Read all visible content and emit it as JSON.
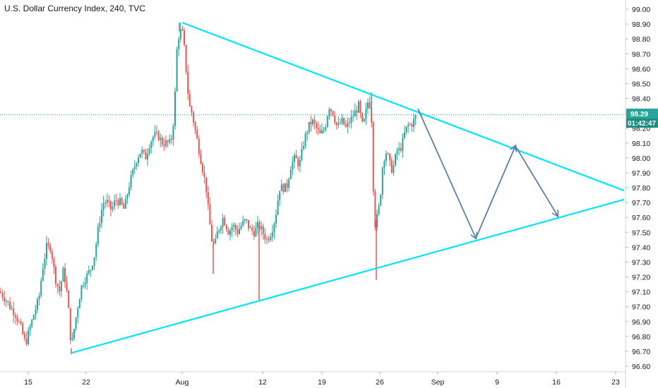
{
  "chart_data": {
    "type": "candlestick",
    "title": "U.S. Dollar Currency Index, 240, TVC",
    "y_ticks": [
      "99.00",
      "98.90",
      "98.80",
      "98.70",
      "98.60",
      "98.50",
      "98.40",
      "98.30",
      "98.20",
      "98.10",
      "98.00",
      "97.90",
      "97.80",
      "97.70",
      "97.60",
      "97.50",
      "97.40",
      "97.30",
      "97.20",
      "97.10",
      "97.00",
      "96.90",
      "96.80",
      "96.70",
      "96.60"
    ],
    "ylim": [
      96.55,
      99.04
    ],
    "x_ticks": [
      "15",
      "22",
      "Aug",
      "12",
      "19",
      "26",
      "Sep",
      "9",
      "16",
      "23"
    ],
    "last_price": "98.29",
    "countdown": "01:42:47",
    "colors": {
      "up": "#26a69a",
      "down": "#ef5350",
      "trendline": "#00e5ff",
      "projection": "#5b7fa6",
      "price_line": "#26a69a"
    },
    "price_path": [
      [
        0,
        97.1
      ],
      [
        8,
        97.05
      ],
      [
        14,
        97.0
      ],
      [
        22,
        96.95
      ],
      [
        30,
        96.85
      ],
      [
        36,
        96.75
      ],
      [
        42,
        96.85
      ],
      [
        48,
        96.95
      ],
      [
        55,
        97.05
      ],
      [
        60,
        97.25
      ],
      [
        66,
        97.4
      ],
      [
        72,
        97.4
      ],
      [
        78,
        97.2
      ],
      [
        84,
        97.1
      ],
      [
        90,
        97.25
      ],
      [
        96,
        97.05
      ],
      [
        101,
        96.72
      ],
      [
        105,
        96.85
      ],
      [
        110,
        97.0
      ],
      [
        116,
        97.15
      ],
      [
        122,
        97.2
      ],
      [
        128,
        97.25
      ],
      [
        134,
        97.35
      ],
      [
        140,
        97.55
      ],
      [
        146,
        97.7
      ],
      [
        152,
        97.7
      ],
      [
        158,
        97.65
      ],
      [
        164,
        97.72
      ],
      [
        170,
        97.7
      ],
      [
        176,
        97.65
      ],
      [
        182,
        97.8
      ],
      [
        188,
        97.9
      ],
      [
        194,
        98.0
      ],
      [
        200,
        98.05
      ],
      [
        206,
        98.0
      ],
      [
        212,
        98.1
      ],
      [
        218,
        98.15
      ],
      [
        224,
        98.15
      ],
      [
        230,
        98.1
      ],
      [
        236,
        98.1
      ],
      [
        242,
        98.1
      ],
      [
        247,
        98.3
      ],
      [
        250,
        98.7
      ],
      [
        254,
        98.85
      ],
      [
        258,
        98.85
      ],
      [
        262,
        98.7
      ],
      [
        265,
        98.5
      ],
      [
        268,
        98.35
      ],
      [
        272,
        98.3
      ],
      [
        276,
        98.2
      ],
      [
        280,
        98.1
      ],
      [
        284,
        98.0
      ],
      [
        288,
        97.9
      ],
      [
        292,
        97.8
      ],
      [
        296,
        97.6
      ],
      [
        300,
        97.45
      ],
      [
        304,
        97.4
      ],
      [
        308,
        97.5
      ],
      [
        312,
        97.55
      ],
      [
        316,
        97.6
      ],
      [
        320,
        97.55
      ],
      [
        324,
        97.5
      ],
      [
        330,
        97.55
      ],
      [
        336,
        97.5
      ],
      [
        342,
        97.55
      ],
      [
        348,
        97.58
      ],
      [
        354,
        97.52
      ],
      [
        360,
        97.5
      ],
      [
        366,
        97.55
      ],
      [
        372,
        97.5
      ],
      [
        378,
        97.45
      ],
      [
        384,
        97.5
      ],
      [
        390,
        97.6
      ],
      [
        396,
        97.8
      ],
      [
        400,
        97.8
      ],
      [
        406,
        97.8
      ],
      [
        412,
        97.95
      ],
      [
        418,
        98.0
      ],
      [
        424,
        97.95
      ],
      [
        430,
        98.1
      ],
      [
        436,
        98.2
      ],
      [
        442,
        98.25
      ],
      [
        448,
        98.2
      ],
      [
        454,
        98.15
      ],
      [
        460,
        98.2
      ],
      [
        466,
        98.35
      ],
      [
        472,
        98.3
      ],
      [
        478,
        98.2
      ],
      [
        484,
        98.25
      ],
      [
        490,
        98.2
      ],
      [
        496,
        98.25
      ],
      [
        502,
        98.3
      ],
      [
        508,
        98.35
      ],
      [
        514,
        98.2
      ],
      [
        518,
        98.3
      ],
      [
        522,
        98.4
      ],
      [
        526,
        98.3
      ],
      [
        528,
        97.9
      ],
      [
        531,
        97.55
      ],
      [
        534,
        97.6
      ],
      [
        538,
        97.7
      ],
      [
        542,
        97.95
      ],
      [
        546,
        98.05
      ],
      [
        550,
        98.0
      ],
      [
        554,
        97.92
      ],
      [
        558,
        97.95
      ],
      [
        562,
        98.05
      ],
      [
        566,
        98.05
      ],
      [
        570,
        98.1
      ],
      [
        574,
        98.18
      ],
      [
        578,
        98.22
      ],
      [
        582,
        98.22
      ],
      [
        586,
        98.25
      ],
      [
        590,
        98.29
      ]
    ],
    "special_wicks": [
      {
        "x": 101,
        "low": 96.68
      },
      {
        "x": 254,
        "high": 98.91
      },
      {
        "x": 367,
        "low": 97.04
      },
      {
        "x": 526,
        "high": 98.44
      },
      {
        "x": 533,
        "low": 97.18
      },
      {
        "x": 302,
        "low": 97.22
      }
    ],
    "trendlines": [
      {
        "name": "upper",
        "from": {
          "x": 258,
          "y": 98.91
        },
        "to": {
          "x": 884,
          "y": 97.78
        }
      },
      {
        "name": "lower",
        "from": {
          "x": 102,
          "y": 96.69
        },
        "to": {
          "x": 884,
          "y": 97.72
        }
      }
    ],
    "projection": [
      {
        "x": 592,
        "y": 98.33
      },
      {
        "x": 674,
        "y": 97.46
      },
      {
        "x": 730,
        "y": 98.08
      },
      {
        "x": 790,
        "y": 97.61
      }
    ]
  }
}
